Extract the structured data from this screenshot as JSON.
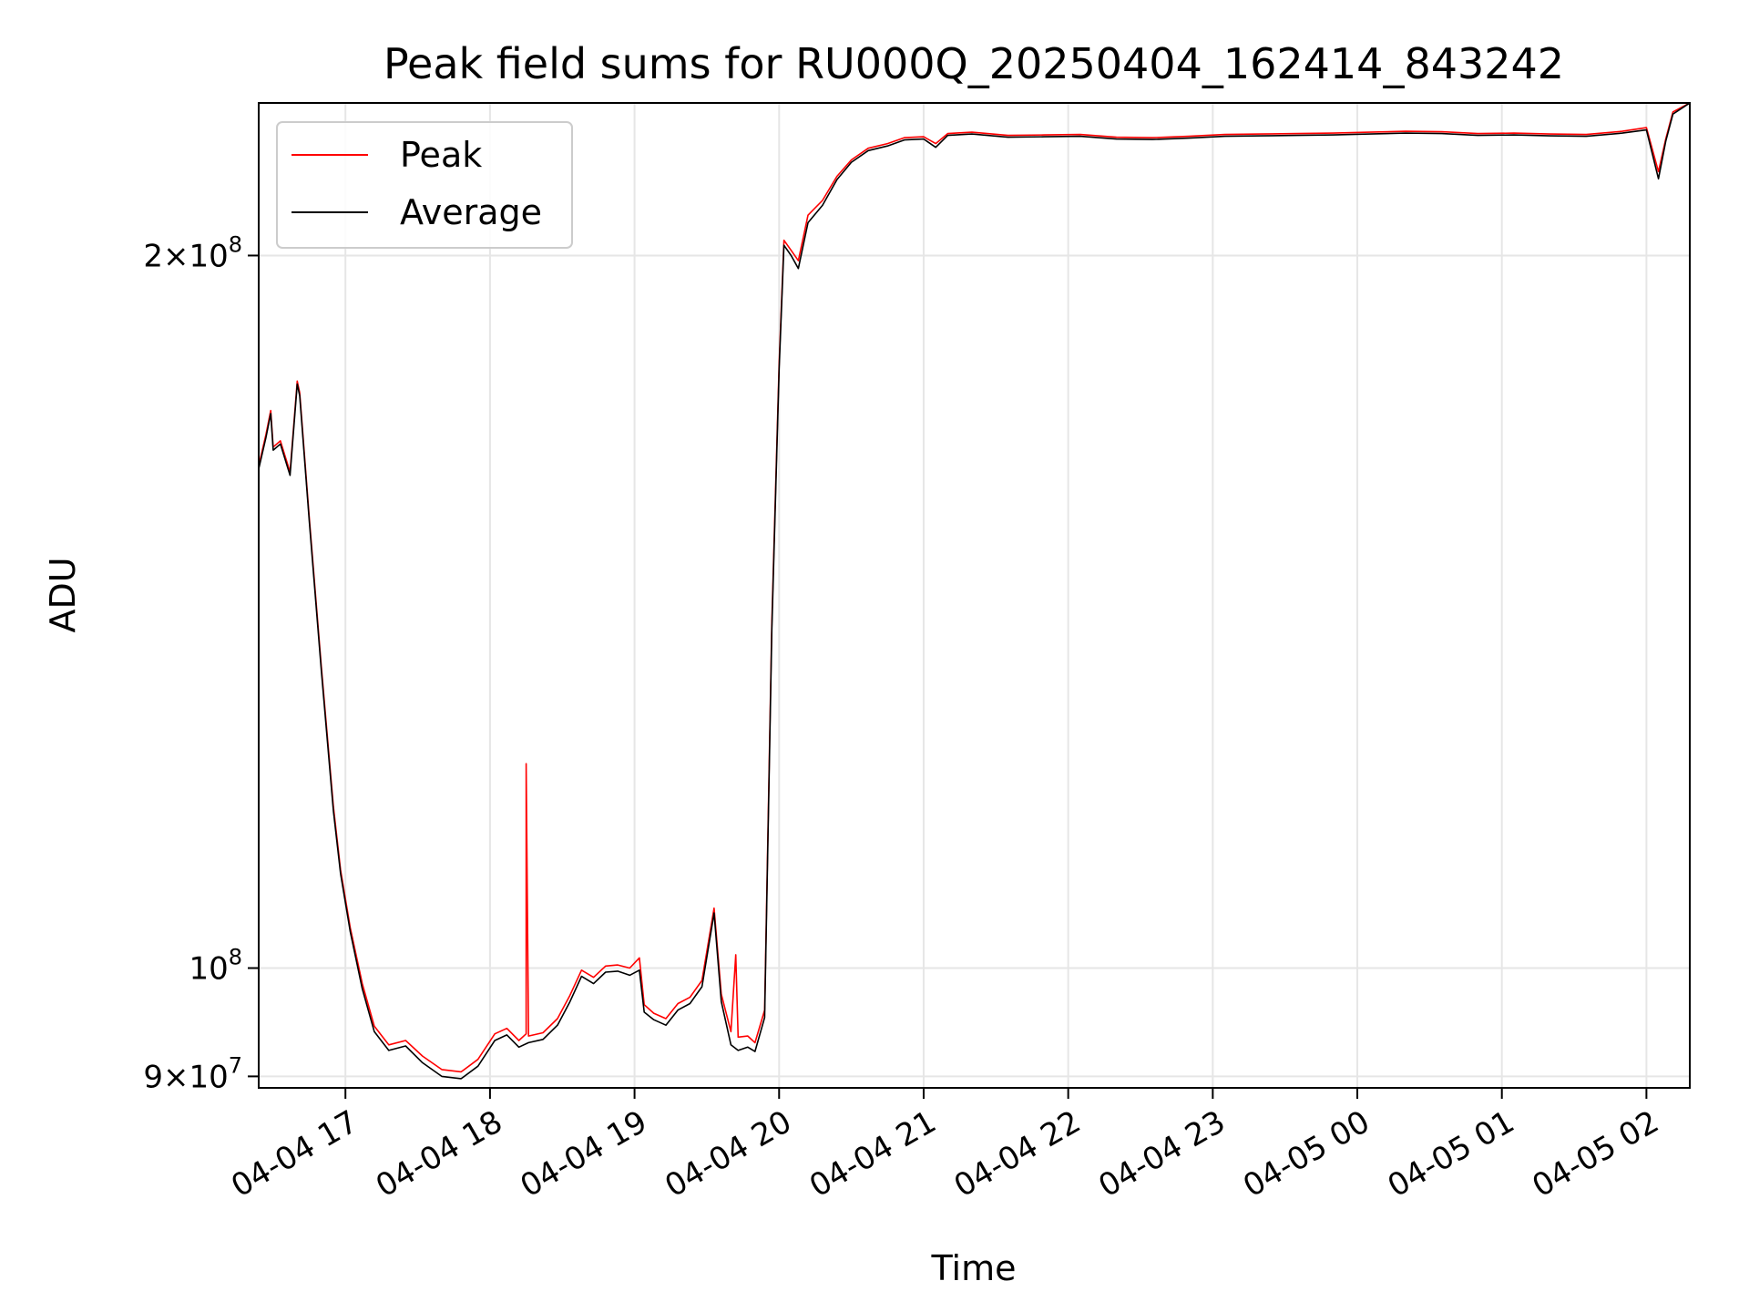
{
  "chart_data": {
    "type": "line",
    "title": "Peak field sums for RU000Q_20250404_162414_843242",
    "xlabel": "Time",
    "ylabel": "ADU",
    "yscale": "log",
    "ylim": [
      89000000,
      232000000
    ],
    "xlim": [
      "2025-04-04 16:24",
      "2025-04-05 02:18"
    ],
    "grid": true,
    "legend_position": "upper left",
    "x_ticks": [
      {
        "value": "2025-04-04 17:00",
        "label": "04-04 17"
      },
      {
        "value": "2025-04-04 18:00",
        "label": "04-04 18"
      },
      {
        "value": "2025-04-04 19:00",
        "label": "04-04 19"
      },
      {
        "value": "2025-04-04 20:00",
        "label": "04-04 20"
      },
      {
        "value": "2025-04-04 21:00",
        "label": "04-04 21"
      },
      {
        "value": "2025-04-04 22:00",
        "label": "04-04 22"
      },
      {
        "value": "2025-04-04 23:00",
        "label": "04-04 23"
      },
      {
        "value": "2025-04-05 00:00",
        "label": "04-05 00"
      },
      {
        "value": "2025-04-05 01:00",
        "label": "04-05 01"
      },
      {
        "value": "2025-04-05 02:00",
        "label": "04-05 02"
      }
    ],
    "y_ticks": [
      {
        "value": 90000000,
        "base": "9×10",
        "exp": "7"
      },
      {
        "value": 100000000,
        "base": "10",
        "exp": "8"
      },
      {
        "value": 200000000,
        "base": "2×10",
        "exp": "8"
      }
    ],
    "series": [
      {
        "name": "Peak",
        "color": "#ff0000",
        "points": [
          [
            "2025-04-04 16:24",
            163000000
          ],
          [
            "2025-04-04 16:27",
            168000000
          ],
          [
            "2025-04-04 16:29",
            172000000
          ],
          [
            "2025-04-04 16:30",
            166000000
          ],
          [
            "2025-04-04 16:33",
            167000000
          ],
          [
            "2025-04-04 16:37",
            162000000
          ],
          [
            "2025-04-04 16:40",
            177000000
          ],
          [
            "2025-04-04 16:41",
            175000000
          ],
          [
            "2025-04-04 16:45",
            155000000
          ],
          [
            "2025-04-04 16:50",
            134000000
          ],
          [
            "2025-04-04 16:55",
            117000000
          ],
          [
            "2025-04-04 16:58",
            110000000
          ],
          [
            "2025-04-04 17:02",
            104000000
          ],
          [
            "2025-04-04 17:07",
            98500000
          ],
          [
            "2025-04-04 17:12",
            94500000
          ],
          [
            "2025-04-04 17:18",
            92800000
          ],
          [
            "2025-04-04 17:25",
            93200000
          ],
          [
            "2025-04-04 17:32",
            91800000
          ],
          [
            "2025-04-04 17:40",
            90600000
          ],
          [
            "2025-04-04 17:48",
            90400000
          ],
          [
            "2025-04-04 17:55",
            91500000
          ],
          [
            "2025-04-04 18:02",
            93800000
          ],
          [
            "2025-04-04 18:07",
            94300000
          ],
          [
            "2025-04-04 18:12",
            93200000
          ],
          [
            "2025-04-04 18:15",
            93800000
          ],
          [
            "2025-04-04 18:15",
            122000000
          ],
          [
            "2025-04-04 18:16",
            93600000
          ],
          [
            "2025-04-04 18:22",
            93900000
          ],
          [
            "2025-04-04 18:28",
            95200000
          ],
          [
            "2025-04-04 18:33",
            97300000
          ],
          [
            "2025-04-04 18:38",
            99800000
          ],
          [
            "2025-04-04 18:43",
            99100000
          ],
          [
            "2025-04-04 18:48",
            100200000
          ],
          [
            "2025-04-04 18:53",
            100300000
          ],
          [
            "2025-04-04 18:58",
            100000000
          ],
          [
            "2025-04-04 19:02",
            101000000
          ],
          [
            "2025-04-04 19:04",
            96500000
          ],
          [
            "2025-04-04 19:08",
            95700000
          ],
          [
            "2025-04-04 19:13",
            95200000
          ],
          [
            "2025-04-04 19:18",
            96600000
          ],
          [
            "2025-04-04 19:23",
            97200000
          ],
          [
            "2025-04-04 19:28",
            98800000
          ],
          [
            "2025-04-04 19:33",
            106000000
          ],
          [
            "2025-04-04 19:36",
            97500000
          ],
          [
            "2025-04-04 19:40",
            94000000
          ],
          [
            "2025-04-04 19:42",
            101300000
          ],
          [
            "2025-04-04 19:43",
            93500000
          ],
          [
            "2025-04-04 19:47",
            93600000
          ],
          [
            "2025-04-04 19:50",
            93000000
          ],
          [
            "2025-04-04 19:54",
            96000000
          ],
          [
            "2025-04-04 19:57",
            140000000
          ],
          [
            "2025-04-04 20:00",
            180000000
          ],
          [
            "2025-04-04 20:02",
            203000000
          ],
          [
            "2025-04-04 20:05",
            201000000
          ],
          [
            "2025-04-04 20:08",
            199000000
          ],
          [
            "2025-04-04 20:12",
            208000000
          ],
          [
            "2025-04-04 20:18",
            211000000
          ],
          [
            "2025-04-04 20:24",
            216000000
          ],
          [
            "2025-04-04 20:30",
            219500000
          ],
          [
            "2025-04-04 20:37",
            222000000
          ],
          [
            "2025-04-04 20:45",
            223000000
          ],
          [
            "2025-04-04 20:52",
            224300000
          ],
          [
            "2025-04-04 21:00",
            224500000
          ],
          [
            "2025-04-04 21:05",
            223000000
          ],
          [
            "2025-04-04 21:10",
            225200000
          ],
          [
            "2025-04-04 21:20",
            225500000
          ],
          [
            "2025-04-04 21:35",
            224800000
          ],
          [
            "2025-04-04 21:50",
            224900000
          ],
          [
            "2025-04-04 22:05",
            225000000
          ],
          [
            "2025-04-04 22:20",
            224400000
          ],
          [
            "2025-04-04 22:35",
            224300000
          ],
          [
            "2025-04-04 22:50",
            224600000
          ],
          [
            "2025-04-04 23:05",
            225000000
          ],
          [
            "2025-04-04 23:20",
            225100000
          ],
          [
            "2025-04-04 23:35",
            225200000
          ],
          [
            "2025-04-04 23:50",
            225300000
          ],
          [
            "2025-04-05 00:05",
            225500000
          ],
          [
            "2025-04-05 00:20",
            225700000
          ],
          [
            "2025-04-05 00:35",
            225600000
          ],
          [
            "2025-04-05 00:50",
            225200000
          ],
          [
            "2025-04-05 01:05",
            225300000
          ],
          [
            "2025-04-05 01:20",
            225100000
          ],
          [
            "2025-04-05 01:35",
            225000000
          ],
          [
            "2025-04-05 01:50",
            225700000
          ],
          [
            "2025-04-05 02:00",
            226500000
          ],
          [
            "2025-04-05 02:05",
            217000000
          ],
          [
            "2025-04-05 02:08",
            224000000
          ],
          [
            "2025-04-05 02:11",
            230000000
          ],
          [
            "2025-04-05 02:18",
            232000000
          ]
        ]
      },
      {
        "name": "Average",
        "color": "#000000",
        "points": [
          [
            "2025-04-04 16:24",
            162500000
          ],
          [
            "2025-04-04 16:27",
            167500000
          ],
          [
            "2025-04-04 16:29",
            171500000
          ],
          [
            "2025-04-04 16:30",
            165500000
          ],
          [
            "2025-04-04 16:33",
            166500000
          ],
          [
            "2025-04-04 16:37",
            161500000
          ],
          [
            "2025-04-04 16:40",
            176500000
          ],
          [
            "2025-04-04 16:41",
            174500000
          ],
          [
            "2025-04-04 16:45",
            154500000
          ],
          [
            "2025-04-04 16:50",
            133500000
          ],
          [
            "2025-04-04 16:55",
            116500000
          ],
          [
            "2025-04-04 16:58",
            109600000
          ],
          [
            "2025-04-04 17:02",
            103600000
          ],
          [
            "2025-04-04 17:07",
            98000000
          ],
          [
            "2025-04-04 17:12",
            94000000
          ],
          [
            "2025-04-04 17:18",
            92300000
          ],
          [
            "2025-04-04 17:25",
            92700000
          ],
          [
            "2025-04-04 17:32",
            91200000
          ],
          [
            "2025-04-04 17:40",
            90000000
          ],
          [
            "2025-04-04 17:48",
            89800000
          ],
          [
            "2025-04-04 17:55",
            90900000
          ],
          [
            "2025-04-04 18:02",
            93200000
          ],
          [
            "2025-04-04 18:07",
            93700000
          ],
          [
            "2025-04-04 18:12",
            92600000
          ],
          [
            "2025-04-04 18:16",
            93000000
          ],
          [
            "2025-04-04 18:22",
            93300000
          ],
          [
            "2025-04-04 18:28",
            94600000
          ],
          [
            "2025-04-04 18:33",
            96700000
          ],
          [
            "2025-04-04 18:38",
            99200000
          ],
          [
            "2025-04-04 18:43",
            98500000
          ],
          [
            "2025-04-04 18:48",
            99600000
          ],
          [
            "2025-04-04 18:53",
            99700000
          ],
          [
            "2025-04-04 18:58",
            99300000
          ],
          [
            "2025-04-04 19:02",
            99800000
          ],
          [
            "2025-04-04 19:04",
            95800000
          ],
          [
            "2025-04-04 19:08",
            95100000
          ],
          [
            "2025-04-04 19:13",
            94600000
          ],
          [
            "2025-04-04 19:18",
            96000000
          ],
          [
            "2025-04-04 19:23",
            96600000
          ],
          [
            "2025-04-04 19:28",
            98200000
          ],
          [
            "2025-04-04 19:33",
            105500000
          ],
          [
            "2025-04-04 19:36",
            96800000
          ],
          [
            "2025-04-04 19:40",
            92800000
          ],
          [
            "2025-04-04 19:43",
            92300000
          ],
          [
            "2025-04-04 19:47",
            92600000
          ],
          [
            "2025-04-04 19:50",
            92200000
          ],
          [
            "2025-04-04 19:54",
            95300000
          ],
          [
            "2025-04-04 19:57",
            139000000
          ],
          [
            "2025-04-04 20:00",
            179000000
          ],
          [
            "2025-04-04 20:02",
            202000000
          ],
          [
            "2025-04-04 20:05",
            200000000
          ],
          [
            "2025-04-04 20:08",
            197500000
          ],
          [
            "2025-04-04 20:12",
            206500000
          ],
          [
            "2025-04-04 20:18",
            210000000
          ],
          [
            "2025-04-04 20:24",
            215300000
          ],
          [
            "2025-04-04 20:30",
            219000000
          ],
          [
            "2025-04-04 20:37",
            221500000
          ],
          [
            "2025-04-04 20:45",
            222500000
          ],
          [
            "2025-04-04 20:52",
            223800000
          ],
          [
            "2025-04-04 21:00",
            224000000
          ],
          [
            "2025-04-04 21:05",
            222200000
          ],
          [
            "2025-04-04 21:10",
            224800000
          ],
          [
            "2025-04-04 21:20",
            225100000
          ],
          [
            "2025-04-04 21:35",
            224400000
          ],
          [
            "2025-04-04 21:50",
            224500000
          ],
          [
            "2025-04-04 22:05",
            224600000
          ],
          [
            "2025-04-04 22:20",
            224000000
          ],
          [
            "2025-04-04 22:35",
            223900000
          ],
          [
            "2025-04-04 22:50",
            224200000
          ],
          [
            "2025-04-04 23:05",
            224600000
          ],
          [
            "2025-04-04 23:20",
            224700000
          ],
          [
            "2025-04-04 23:35",
            224800000
          ],
          [
            "2025-04-04 23:50",
            224900000
          ],
          [
            "2025-04-05 00:05",
            225100000
          ],
          [
            "2025-04-05 00:20",
            225300000
          ],
          [
            "2025-04-05 00:35",
            225200000
          ],
          [
            "2025-04-05 00:50",
            224800000
          ],
          [
            "2025-04-05 01:05",
            224900000
          ],
          [
            "2025-04-05 01:20",
            224700000
          ],
          [
            "2025-04-05 01:35",
            224600000
          ],
          [
            "2025-04-05 01:50",
            225300000
          ],
          [
            "2025-04-05 02:00",
            226000000
          ],
          [
            "2025-04-05 02:05",
            215500000
          ],
          [
            "2025-04-05 02:08",
            223500000
          ],
          [
            "2025-04-05 02:11",
            229500000
          ],
          [
            "2025-04-05 02:18",
            232000000
          ]
        ]
      }
    ]
  }
}
